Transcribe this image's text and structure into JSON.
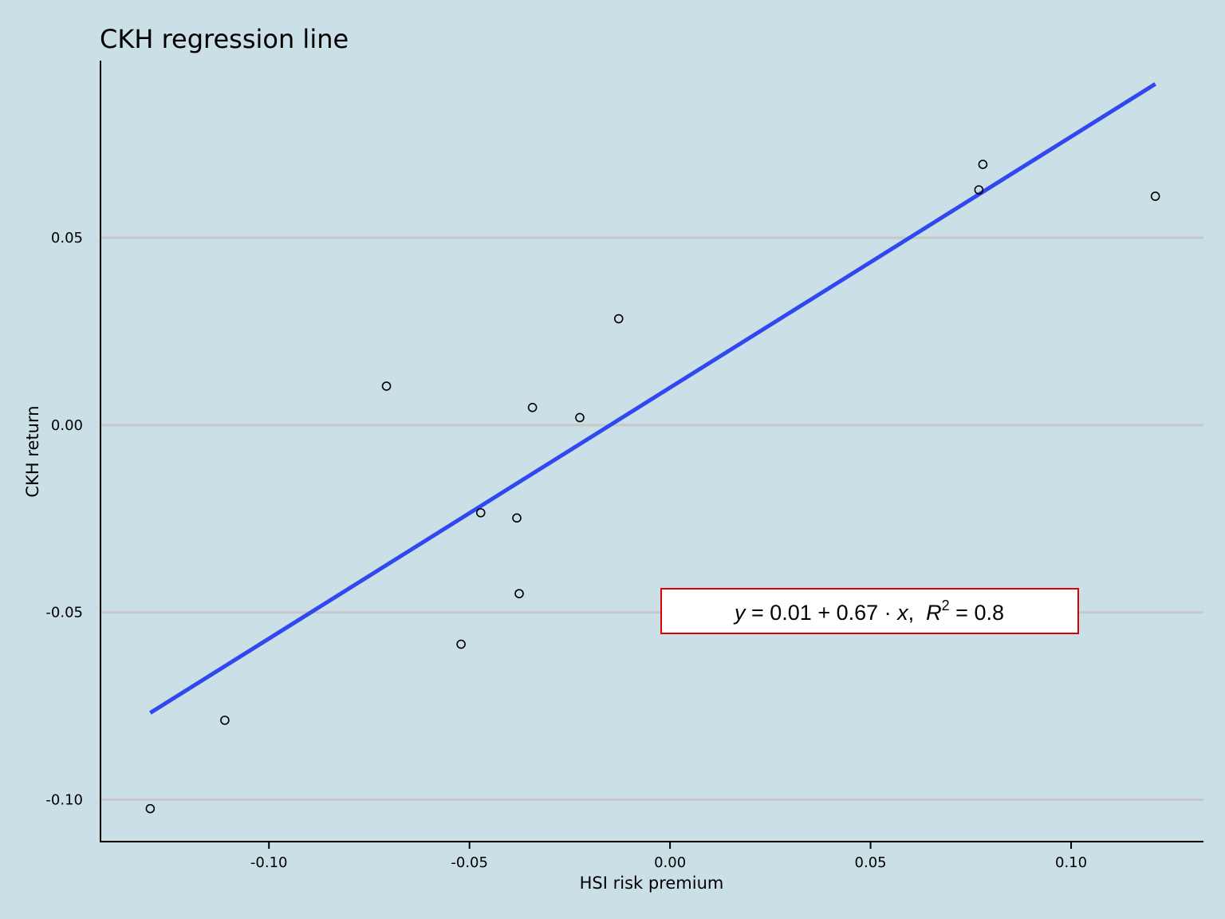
{
  "chart_data": {
    "type": "scatter",
    "title": "CKH regression line",
    "xlabel": "HSI risk premium",
    "ylabel": "CKH return",
    "xlim": [
      -0.142,
      0.133
    ],
    "ylim": [
      -0.1112,
      0.0973
    ],
    "x_ticks": [
      -0.1,
      -0.05,
      0.0,
      0.05,
      0.1
    ],
    "x_tick_labels": [
      "-0.10",
      "-0.05",
      "0.00",
      "0.05",
      "0.10"
    ],
    "y_ticks": [
      -0.1,
      -0.05,
      0.0,
      0.05
    ],
    "y_tick_labels": [
      "-0.10",
      "-0.05",
      "0.00",
      "0.05"
    ],
    "grid": "horizontal",
    "points": [
      {
        "x": -0.1296,
        "y": -0.1024
      },
      {
        "x": -0.111,
        "y": -0.0788
      },
      {
        "x": -0.0707,
        "y": 0.0104
      },
      {
        "x": -0.0521,
        "y": -0.0585
      },
      {
        "x": -0.0472,
        "y": -0.0234
      },
      {
        "x": -0.0382,
        "y": -0.0248
      },
      {
        "x": -0.0376,
        "y": -0.045
      },
      {
        "x": -0.0343,
        "y": 0.0047
      },
      {
        "x": -0.0225,
        "y": 0.002
      },
      {
        "x": -0.0128,
        "y": 0.0284
      },
      {
        "x": 0.077,
        "y": 0.0628
      },
      {
        "x": 0.078,
        "y": 0.0696
      },
      {
        "x": 0.121,
        "y": 0.0611
      }
    ],
    "regression_line": {
      "intercept": 0.01,
      "slope": 0.67,
      "x_range": [
        -0.1296,
        0.121
      ],
      "color": "#3048f0"
    },
    "point_color": "#000000",
    "gridline_color": "#c8c8c8",
    "background_color": "#cbdfe7",
    "annotation": {
      "parts": [
        "y",
        " = 0.01 + 0.67 · ",
        "x",
        ",  ",
        "R",
        "2",
        " = 0.8"
      ],
      "border_color": "#e00000",
      "box_color": "#ffffff"
    }
  }
}
